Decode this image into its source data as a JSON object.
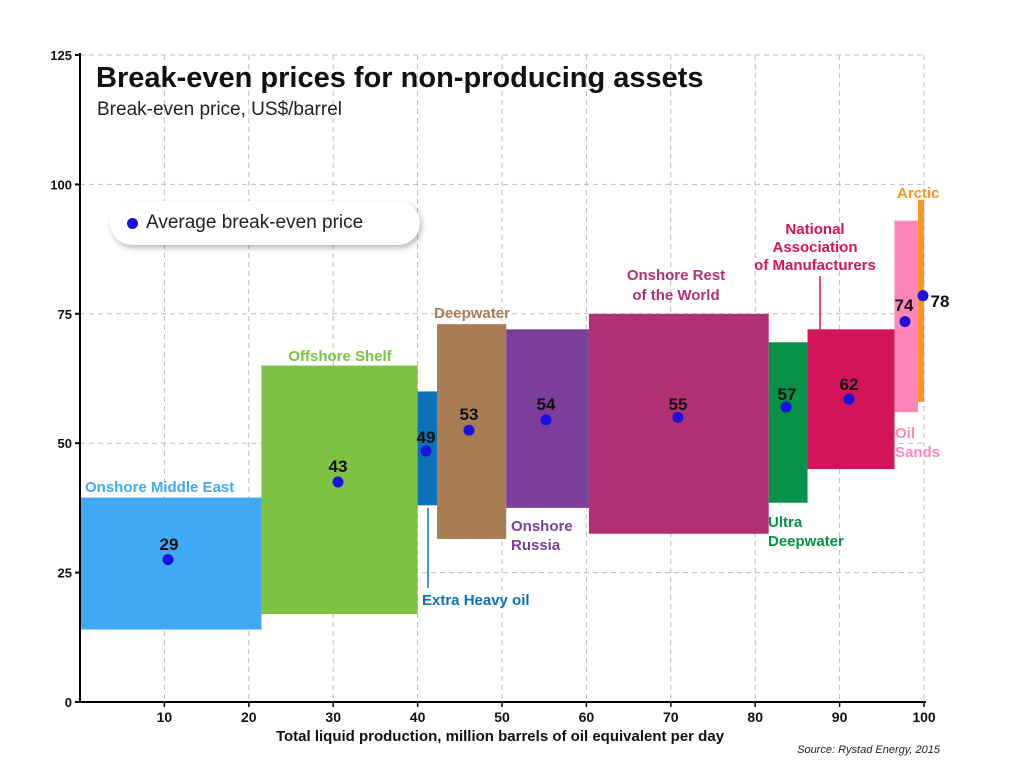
{
  "chart_data": {
    "type": "bar",
    "title": "Break-even prices for non-producing assets",
    "subtitle": "Break-even price, US$/barrel",
    "xlabel": "Total liquid production, million barrels of oil equivalent per day",
    "ylabel": "",
    "xlim": [
      0,
      100
    ],
    "ylim": [
      0,
      125
    ],
    "x_ticks": [
      10,
      20,
      30,
      40,
      50,
      60,
      70,
      80,
      90,
      100
    ],
    "y_ticks": [
      0,
      25,
      50,
      75,
      100,
      125
    ],
    "grid": true,
    "legend": {
      "label": "Average break-even price",
      "marker_color": "#1a10e0",
      "position": "top-left"
    },
    "source": "Source: Rystad Energy, 2015",
    "segments": [
      {
        "label": [
          "Onshore Middle East"
        ],
        "x_start": 0,
        "x_end": 21.5,
        "low": 14,
        "high": 39.5,
        "average": 29,
        "marker_y": 27.5,
        "color": "#3fa9f5"
      },
      {
        "label": [
          "Offshore Shelf"
        ],
        "x_start": 21.5,
        "x_end": 40,
        "low": 17,
        "high": 65,
        "average": 43,
        "marker_y": 42.5,
        "color": "#7dc242"
      },
      {
        "label": [
          "Extra Heavy oil"
        ],
        "x_start": 40,
        "x_end": 42.3,
        "low": 38,
        "high": 60,
        "average": 49,
        "marker_y": 48.5,
        "color": "#0a72b8"
      },
      {
        "label": [
          "Deepwater"
        ],
        "x_start": 42.3,
        "x_end": 50.5,
        "low": 31.5,
        "high": 73,
        "average": 53,
        "marker_y": 52.5,
        "color": "#a87d52"
      },
      {
        "label": [
          "Onshore",
          "Russia"
        ],
        "x_start": 50.5,
        "x_end": 60.3,
        "low": 37.5,
        "high": 72,
        "average": 54,
        "marker_y": 54.5,
        "color": "#7b3f9b"
      },
      {
        "label": [
          "Onshore Rest",
          "of the World"
        ],
        "x_start": 60.3,
        "x_end": 81.6,
        "low": 32.5,
        "high": 75,
        "average": 55,
        "marker_y": 55,
        "color": "#b03074"
      },
      {
        "label": [
          "Ultra",
          "Deepwater"
        ],
        "x_start": 81.6,
        "x_end": 86.2,
        "low": 38.5,
        "high": 69.5,
        "average": 57,
        "marker_y": 57,
        "color": "#079047"
      },
      {
        "label": [
          "National",
          "Association",
          "of Manufacturers"
        ],
        "x_start": 86.2,
        "x_end": 96.5,
        "low": 45,
        "high": 72,
        "average": 62,
        "marker_y": 58.5,
        "color": "#d4145a"
      },
      {
        "label": [
          "Oil",
          "Sands"
        ],
        "x_start": 96.5,
        "x_end": 99.3,
        "low": 56,
        "high": 93,
        "average": 74,
        "marker_y": 73.5,
        "color": "#ff86b6"
      },
      {
        "label": [
          "Arctic"
        ],
        "x_start": 99.3,
        "x_end": 100,
        "low": 58,
        "high": 97,
        "average": 78,
        "marker_y": 78.5,
        "color": "#f7931e"
      }
    ]
  }
}
